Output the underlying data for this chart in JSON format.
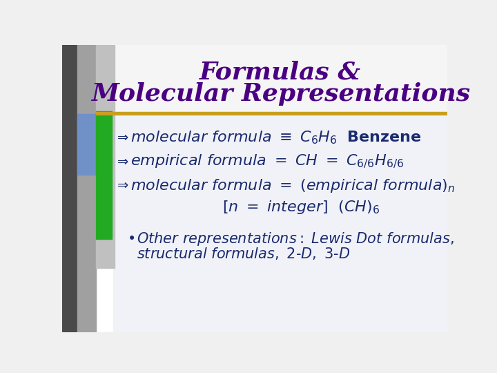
{
  "title_line1": "Formulas &",
  "title_line2": "Molecular Representations",
  "title_color": "#4B0082",
  "title_fontsize": 26,
  "bg_color": "#F0F0F0",
  "title_bg": "#F5F5F5",
  "content_bg": "#F8F8FF",
  "separator_color": "#C8A020",
  "bullet_color": "#1C2B6E",
  "bullet_fontsize": 16,
  "arrow_color": "#1C2B6E",
  "sidebar_dark": "#505050",
  "sidebar_mid": "#909090",
  "sidebar_blue": "#6090C8",
  "sidebar_green": "#22AA22",
  "sidebar_lightgray": "#B0B0B0"
}
